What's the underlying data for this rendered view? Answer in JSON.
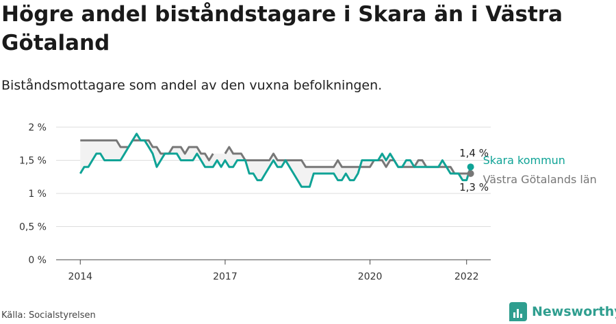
{
  "title": "Högre andel biståndstagare i Skara än i Västra Götaland",
  "subtitle": "Biståndsmottagare som andel av den vuxna befolkningen.",
  "source": "Källa: Socialstyrelsen",
  "brand": "Newsworthy",
  "colors": {
    "skara": "#0fa396",
    "vgl": "#777777",
    "grid": "#dddddd",
    "brand": "#2f9e8f"
  },
  "chart_data": {
    "type": "line",
    "xlim": [
      2013.5,
      2022.5
    ],
    "ylim": [
      0,
      2
    ],
    "y_ticks": [
      {
        "value": 0,
        "label": "0 %"
      },
      {
        "value": 0.5,
        "label": "0,5 %"
      },
      {
        "value": 1,
        "label": "1 %"
      },
      {
        "value": 1.5,
        "label": "1,5 %"
      },
      {
        "value": 2,
        "label": "2 %"
      }
    ],
    "x_ticks": [
      {
        "value": 2014,
        "label": "2014"
      },
      {
        "value": 2017,
        "label": "2017"
      },
      {
        "value": 2020,
        "label": "2020"
      },
      {
        "value": 2022,
        "label": "2022"
      }
    ],
    "annotations": [
      {
        "series": "Skara kommun",
        "text": "1,4 %"
      },
      {
        "series": "Västra Götalands län",
        "text": "1,3 %"
      }
    ],
    "series": [
      {
        "name": "Skara kommun",
        "x": [
          2014.0,
          2014.083,
          2014.167,
          2014.25,
          2014.333,
          2014.417,
          2014.5,
          2014.583,
          2014.667,
          2014.75,
          2014.833,
          2014.917,
          2015.0,
          2015.083,
          2015.167,
          2015.25,
          2015.333,
          2015.417,
          2015.5,
          2015.583,
          2015.667,
          2015.75,
          2015.833,
          2015.917,
          2016.0,
          2016.083,
          2016.167,
          2016.25,
          2016.333,
          2016.417,
          2016.5,
          2016.583,
          2016.667,
          2016.75,
          2016.833,
          2016.917,
          2017.0,
          2017.083,
          2017.167,
          2017.25,
          2017.333,
          2017.417,
          2017.5,
          2017.583,
          2017.667,
          2017.75,
          2017.833,
          2017.917,
          2018.0,
          2018.083,
          2018.167,
          2018.25,
          2018.333,
          2018.417,
          2018.5,
          2018.583,
          2018.667,
          2018.75,
          2018.833,
          2018.917,
          2019.0,
          2019.083,
          2019.167,
          2019.25,
          2019.333,
          2019.417,
          2019.5,
          2019.583,
          2019.667,
          2019.75,
          2019.833,
          2019.917,
          2020.0,
          2020.083,
          2020.167,
          2020.25,
          2020.333,
          2020.417,
          2020.5,
          2020.583,
          2020.667,
          2020.75,
          2020.833,
          2020.917,
          2021.0,
          2021.083,
          2021.167,
          2021.25,
          2021.333,
          2021.417,
          2021.5,
          2021.583,
          2021.667,
          2021.75,
          2021.833,
          2021.917,
          2022.0,
          2022.083
        ],
        "values": [
          1.3,
          1.4,
          1.4,
          1.5,
          1.6,
          1.6,
          1.5,
          1.5,
          1.5,
          1.5,
          1.5,
          1.6,
          1.7,
          1.8,
          1.9,
          1.8,
          1.8,
          1.7,
          1.6,
          1.4,
          1.5,
          1.6,
          1.6,
          1.6,
          1.6,
          1.5,
          1.5,
          1.5,
          1.5,
          1.6,
          1.5,
          1.4,
          1.4,
          1.4,
          1.5,
          1.4,
          1.5,
          1.4,
          1.4,
          1.5,
          1.5,
          1.5,
          1.3,
          1.3,
          1.2,
          1.2,
          1.3,
          1.4,
          1.5,
          1.4,
          1.4,
          1.5,
          1.4,
          1.3,
          1.2,
          1.1,
          1.1,
          1.1,
          1.3,
          1.3,
          1.3,
          1.3,
          1.3,
          1.3,
          1.2,
          1.2,
          1.3,
          1.2,
          1.2,
          1.3,
          1.5,
          1.5,
          1.5,
          1.5,
          1.5,
          1.6,
          1.5,
          1.6,
          1.5,
          1.4,
          1.4,
          1.5,
          1.5,
          1.4,
          1.4,
          1.4,
          1.4,
          1.4,
          1.4,
          1.4,
          1.5,
          1.4,
          1.3,
          1.3,
          1.3,
          1.2,
          1.2,
          1.4
        ]
      },
      {
        "name": "Västra Götalands län",
        "x": [
          2014.0,
          2014.083,
          2014.167,
          2014.25,
          2014.333,
          2014.417,
          2014.5,
          2014.583,
          2014.667,
          2014.75,
          2014.833,
          2014.917,
          2015.0,
          2015.083,
          2015.167,
          2015.25,
          2015.333,
          2015.417,
          2015.5,
          2015.583,
          2015.667,
          2015.75,
          2015.833,
          2015.917,
          2016.0,
          2016.083,
          2016.167,
          2016.25,
          2016.333,
          2016.417,
          2016.5,
          2016.583,
          2016.667,
          2016.75,
          2016.833,
          2016.917,
          2017.0,
          2017.083,
          2017.167,
          2017.25,
          2017.333,
          2017.417,
          2017.5,
          2017.583,
          2017.667,
          2017.75,
          2017.833,
          2017.917,
          2018.0,
          2018.083,
          2018.167,
          2018.25,
          2018.333,
          2018.417,
          2018.5,
          2018.583,
          2018.667,
          2018.75,
          2018.833,
          2018.917,
          2019.0,
          2019.083,
          2019.167,
          2019.25,
          2019.333,
          2019.417,
          2019.5,
          2019.583,
          2019.667,
          2019.75,
          2019.833,
          2019.917,
          2020.0,
          2020.083,
          2020.167,
          2020.25,
          2020.333,
          2020.417,
          2020.5,
          2020.583,
          2020.667,
          2020.75,
          2020.833,
          2020.917,
          2021.0,
          2021.083,
          2021.167,
          2021.25,
          2021.333,
          2021.417,
          2021.5,
          2021.583,
          2021.667,
          2021.75,
          2021.833,
          2021.917,
          2022.0,
          2022.083
        ],
        "values": [
          1.8,
          1.8,
          1.8,
          1.8,
          1.8,
          1.8,
          1.8,
          1.8,
          1.8,
          1.8,
          1.7,
          1.7,
          1.7,
          1.8,
          1.8,
          1.8,
          1.8,
          1.8,
          1.7,
          1.7,
          1.6,
          1.6,
          1.6,
          1.7,
          1.7,
          1.7,
          1.6,
          1.7,
          1.7,
          1.7,
          1.6,
          1.6,
          1.5,
          1.6,
          null,
          null,
          1.6,
          1.7,
          1.6,
          1.6,
          1.6,
          1.5,
          1.5,
          1.5,
          1.5,
          1.5,
          1.5,
          1.5,
          1.6,
          1.5,
          1.5,
          1.5,
          1.5,
          1.5,
          1.5,
          1.5,
          1.4,
          1.4,
          1.4,
          1.4,
          1.4,
          1.4,
          1.4,
          1.4,
          1.5,
          1.4,
          1.4,
          1.4,
          1.4,
          1.4,
          1.4,
          1.4,
          1.4,
          1.5,
          1.5,
          1.5,
          1.4,
          1.5,
          1.5,
          1.4,
          1.4,
          1.4,
          1.4,
          1.4,
          1.5,
          1.5,
          1.4,
          1.4,
          1.4,
          1.4,
          1.4,
          1.4,
          1.4,
          1.3,
          1.3,
          1.3,
          1.3,
          1.3
        ]
      }
    ]
  }
}
